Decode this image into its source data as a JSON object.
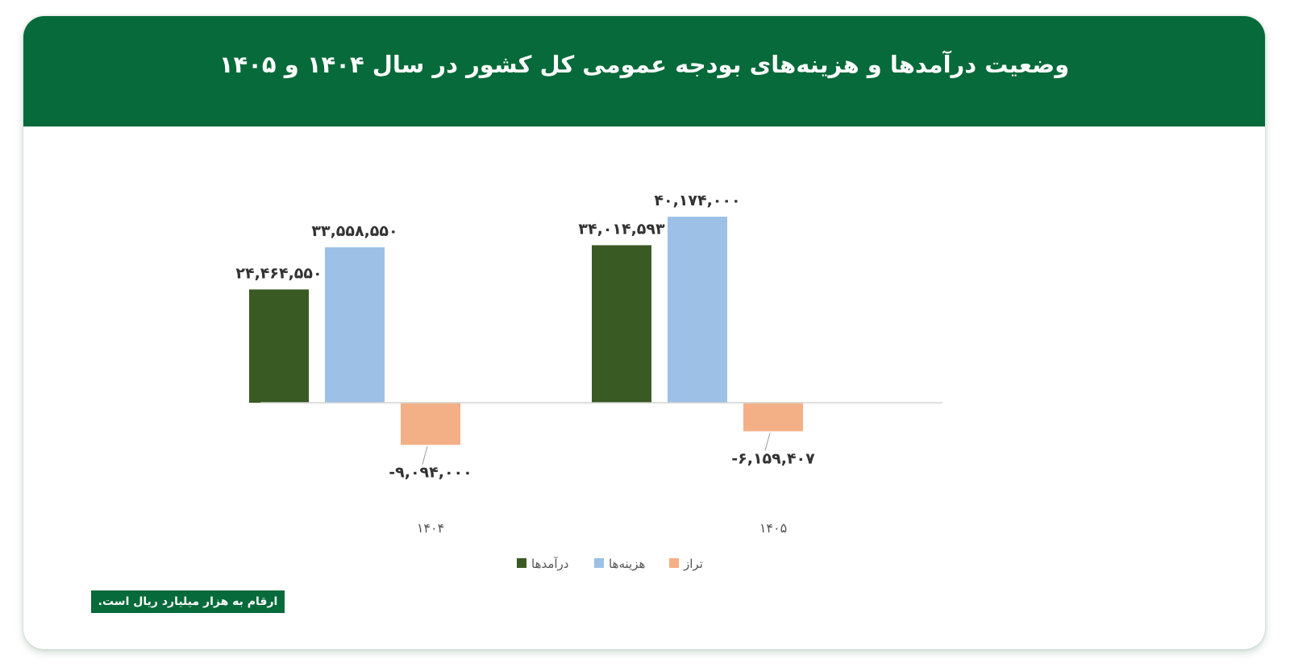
{
  "title": "وضعیت درآمدها و هزینه‌های بودجه عمومی کل کشور در سال ۱۴۰۴ و ۱۴۰۵",
  "footnote": "ارقام به هزار میلیارد ریال است.",
  "colors": {
    "header": "#066a3a",
    "revenue": "#3a5a23",
    "expense": "#9dc1e6",
    "balance": "#f3b086"
  },
  "chart_data": {
    "type": "bar",
    "categories": [
      "۱۴۰۴",
      "۱۴۰۵"
    ],
    "series": [
      {
        "name": "درآمدها",
        "values": [
          24464550,
          34014593
        ],
        "labels": [
          "۲۴,۴۶۴,۵۵۰",
          "۳۴,۰۱۴,۵۹۳"
        ]
      },
      {
        "name": "هزینه‌ها",
        "values": [
          33558550,
          40174000
        ],
        "labels": [
          "۳۳,۵۵۸,۵۵۰",
          "۴۰,۱۷۴,۰۰۰"
        ]
      },
      {
        "name": "تراز",
        "values": [
          -9094000,
          -6159407
        ],
        "labels": [
          "-۹,۰۹۴,۰۰۰",
          "-۶,۱۵۹,۴۰۷"
        ]
      }
    ],
    "legend_position": "bottom",
    "grid": false
  }
}
